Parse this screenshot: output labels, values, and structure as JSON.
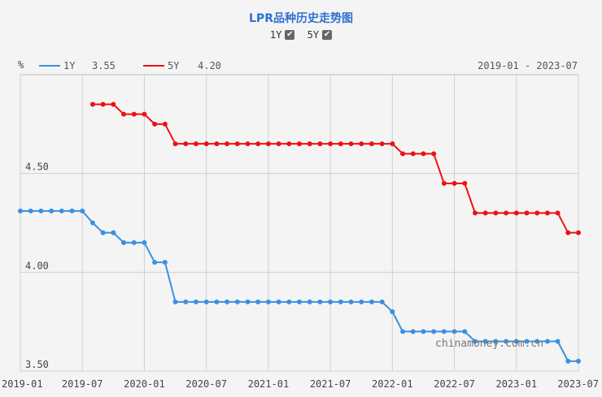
{
  "title": "LPR品种历史走势图",
  "toggles": [
    {
      "label": "1Y",
      "checked": true,
      "check_glyph": "✔"
    },
    {
      "label": "5Y",
      "checked": true,
      "check_glyph": "✔"
    }
  ],
  "legend": [
    {
      "name": "1Y",
      "latest": "3.55",
      "color": "#3d8fe0"
    },
    {
      "name": "5Y",
      "latest": "4.20",
      "color": "#ee1111"
    }
  ],
  "range_label": "2019-01 - 2023-07",
  "watermark": "chinamoney.com.cn",
  "colors": {
    "grid": "#cfcfcf",
    "axis": "#bbbbbb",
    "text": "#444444",
    "series_1y": "#3d8fe0",
    "series_5y": "#ee1111"
  },
  "chart_data": {
    "type": "line",
    "ylabel": "%",
    "ylim": [
      3.5,
      5.0
    ],
    "yticks": [
      3.5,
      4.0,
      4.5
    ],
    "ytick_labels": [
      "3.50",
      "4.00",
      "4.50"
    ],
    "xlim": [
      "2019-01",
      "2023-07"
    ],
    "xticks": [
      "2019-01",
      "2019-07",
      "2020-01",
      "2020-07",
      "2021-01",
      "2021-07",
      "2022-01",
      "2022-07",
      "2023-01",
      "2023-07"
    ],
    "grid": true,
    "x": [
      "2019-01",
      "2019-02",
      "2019-03",
      "2019-04",
      "2019-05",
      "2019-06",
      "2019-07",
      "2019-08",
      "2019-09",
      "2019-10",
      "2019-11",
      "2019-12",
      "2020-01",
      "2020-02",
      "2020-03",
      "2020-04",
      "2020-05",
      "2020-06",
      "2020-07",
      "2020-08",
      "2020-09",
      "2020-10",
      "2020-11",
      "2020-12",
      "2021-01",
      "2021-02",
      "2021-03",
      "2021-04",
      "2021-05",
      "2021-06",
      "2021-07",
      "2021-08",
      "2021-09",
      "2021-10",
      "2021-11",
      "2021-12",
      "2022-01",
      "2022-02",
      "2022-03",
      "2022-04",
      "2022-05",
      "2022-06",
      "2022-07",
      "2022-08",
      "2022-09",
      "2022-10",
      "2022-11",
      "2022-12",
      "2023-01",
      "2023-02",
      "2023-03",
      "2023-04",
      "2023-05",
      "2023-06",
      "2023-07"
    ],
    "series": [
      {
        "name": "1Y",
        "values": [
          4.31,
          4.31,
          4.31,
          4.31,
          4.31,
          4.31,
          4.31,
          4.25,
          4.2,
          4.2,
          4.15,
          4.15,
          4.15,
          4.05,
          4.05,
          3.85,
          3.85,
          3.85,
          3.85,
          3.85,
          3.85,
          3.85,
          3.85,
          3.85,
          3.85,
          3.85,
          3.85,
          3.85,
          3.85,
          3.85,
          3.85,
          3.85,
          3.85,
          3.85,
          3.85,
          3.85,
          3.8,
          3.7,
          3.7,
          3.7,
          3.7,
          3.7,
          3.7,
          3.7,
          3.65,
          3.65,
          3.65,
          3.65,
          3.65,
          3.65,
          3.65,
          3.65,
          3.65,
          3.55,
          3.55
        ]
      },
      {
        "name": "5Y",
        "values": [
          null,
          null,
          null,
          null,
          null,
          null,
          null,
          4.85,
          4.85,
          4.85,
          4.8,
          4.8,
          4.8,
          4.75,
          4.75,
          4.65,
          4.65,
          4.65,
          4.65,
          4.65,
          4.65,
          4.65,
          4.65,
          4.65,
          4.65,
          4.65,
          4.65,
          4.65,
          4.65,
          4.65,
          4.65,
          4.65,
          4.65,
          4.65,
          4.65,
          4.65,
          4.65,
          4.6,
          4.6,
          4.6,
          4.6,
          4.45,
          4.45,
          4.45,
          4.3,
          4.3,
          4.3,
          4.3,
          4.3,
          4.3,
          4.3,
          4.3,
          4.3,
          4.2,
          4.2
        ]
      }
    ]
  }
}
